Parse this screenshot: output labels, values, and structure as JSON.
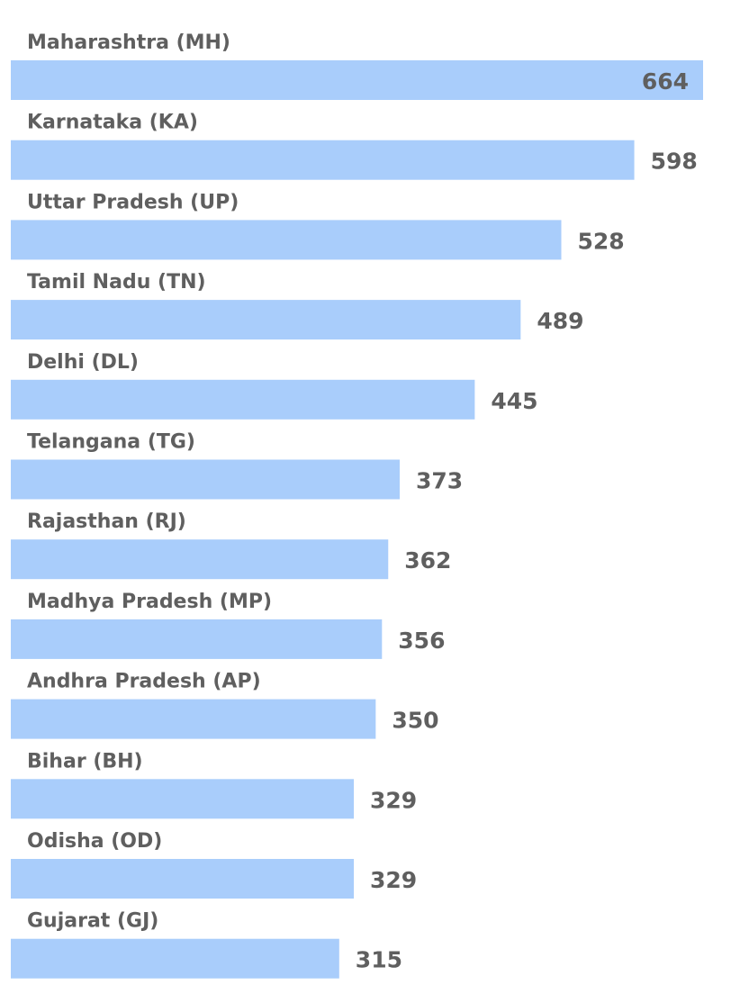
{
  "colors": {
    "bar": "#a9cdfb",
    "text": "#5f5f5f",
    "background": "#ffffff"
  },
  "chart_data": {
    "type": "bar",
    "orientation": "horizontal",
    "title": "",
    "xlabel": "",
    "ylabel": "",
    "grid": false,
    "categories": [
      "Maharashtra (MH)",
      "Karnataka (KA)",
      "Uttar Pradesh (UP)",
      "Tamil Nadu (TN)",
      "Delhi (DL)",
      "Telangana (TG)",
      "Rajasthan (RJ)",
      "Madhya Pradesh (MP)",
      "Andhra Pradesh (AP)",
      "Bihar (BH)",
      "Odisha (OD)",
      "Gujarat (GJ)"
    ],
    "values": [
      664,
      598,
      528,
      489,
      445,
      373,
      362,
      356,
      350,
      329,
      329,
      315
    ],
    "value_labels": [
      "664",
      "598",
      "528",
      "489",
      "445",
      "373",
      "362",
      "356",
      "350",
      "329",
      "329",
      "315"
    ]
  }
}
